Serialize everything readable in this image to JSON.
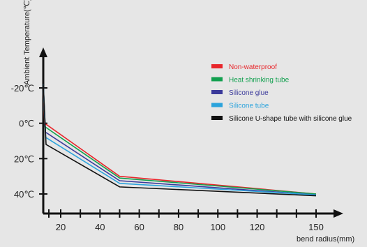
{
  "chart_data": {
    "type": "line",
    "xlabel": "bend radius(mm)",
    "ylabel": "Ambient Temperature(℃)",
    "x_ticks": [
      20,
      40,
      60,
      80,
      100,
      120,
      150
    ],
    "y_ticks": [
      -20,
      0,
      20,
      40
    ],
    "y_tick_labels": [
      "-20℃",
      "0℃",
      "20℃",
      "40℃"
    ],
    "xlim": [
      10,
      150
    ],
    "ylim": [
      -20,
      40
    ],
    "y_axis_inverted": true,
    "grid": false,
    "legend_position": "top-right",
    "series": [
      {
        "name": "Non-waterproof",
        "color": "#e8262b",
        "x": [
          10,
          50,
          150
        ],
        "y": [
          0,
          30,
          40
        ]
      },
      {
        "name": "Heat  shrinking  tube",
        "color": "#12a04f",
        "x": [
          10,
          50,
          150
        ],
        "y": [
          2,
          31,
          40
        ]
      },
      {
        "name": "Silicone  glue",
        "color": "#3b3a9b",
        "x": [
          10,
          50,
          150
        ],
        "y": [
          5,
          32.5,
          40.5
        ]
      },
      {
        "name": "Silicone tube",
        "color": "#2ba3dc",
        "x": [
          10,
          50,
          150
        ],
        "y": [
          8,
          34,
          40.5
        ]
      },
      {
        "name": "Silicone  U-shape tube  with  silicone glue",
        "color": "#111111",
        "x": [
          10,
          50,
          150
        ],
        "y": [
          12,
          36,
          41
        ]
      }
    ]
  }
}
